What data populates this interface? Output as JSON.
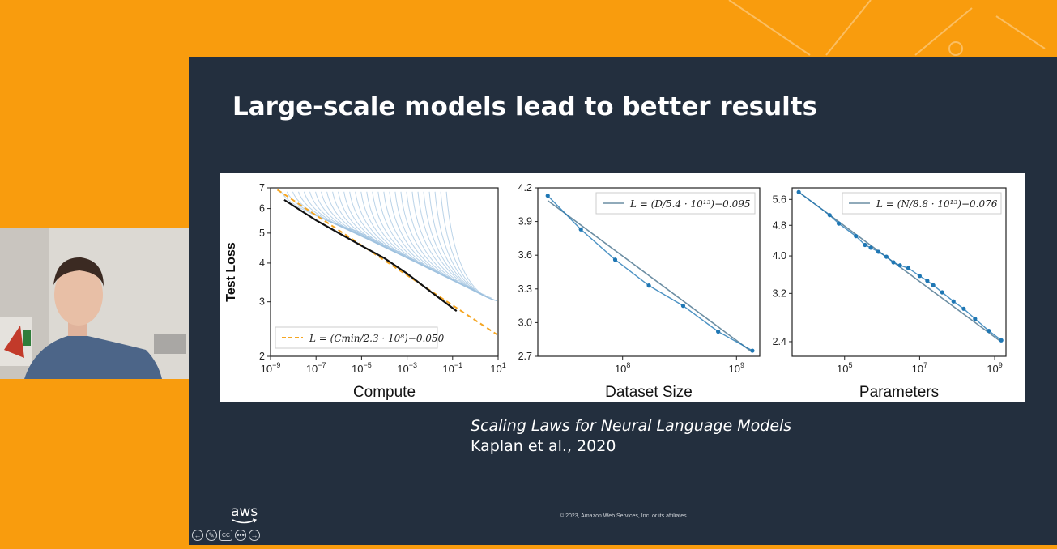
{
  "slide": {
    "title": "Large-scale models lead to better results",
    "caption_title": "Scaling Laws for Neural Language Models",
    "caption_citation": "Kaplan et al., 2020",
    "copyright": "© 2023, Amazon Web Services, Inc. or its affiliates.",
    "logo_text": "aws"
  },
  "controls": {
    "prev": "←",
    "pen": "✎",
    "cc": "CC",
    "more": "•••",
    "next": "→"
  },
  "colors": {
    "background": "#f99c0d",
    "slide_bg": "#232f3e",
    "fit_line": "#5b7f96",
    "points": "#1f77b4",
    "orange_dash": "#f5a623"
  },
  "chart_data": [
    {
      "type": "line",
      "xlabel": "Compute",
      "ylabel": "Test Loss",
      "xscale": "log",
      "yscale": "log",
      "xlim": [
        1e-09,
        10
      ],
      "ylim": [
        2,
        7
      ],
      "x_ticks": [
        "10−9",
        "10−7",
        "10−5",
        "10−3",
        "10−1",
        "101"
      ],
      "y_ticks": [
        "2",
        "3",
        "4",
        "5",
        "6",
        "7"
      ],
      "legend": "L = (Cmin/2.3 · 10⁸)−0.050",
      "legend_position": "lower-left",
      "series": [
        {
          "x": [
            4e-09,
            1e-06,
            0.0001,
            0.01,
            0.1,
            10
          ],
          "y": [
            6.7,
            5.4,
            4.4,
            3.6,
            3.1,
            2.4
          ]
        }
      ]
    },
    {
      "type": "line",
      "xlabel": "Dataset Size",
      "xscale": "log",
      "xlim": [
        18000000.0,
        1600000000.0
      ],
      "ylim": [
        2.7,
        4.2
      ],
      "x_ticks": [
        "108",
        "109"
      ],
      "y_ticks": [
        "2.7",
        "3.0",
        "3.3",
        "3.6",
        "3.9",
        "4.2"
      ],
      "legend": "L = (D/5.4 · 10¹³)−0.095",
      "legend_position": "top-right",
      "series": [
        {
          "x": [
            22000000.0,
            43000000.0,
            86000000.0,
            170000000.0,
            340000000.0,
            690000000.0,
            1380000000.0
          ],
          "y": [
            4.13,
            3.83,
            3.56,
            3.33,
            3.15,
            2.92,
            2.75
          ]
        }
      ]
    },
    {
      "type": "scatter",
      "xlabel": "Parameters",
      "xscale": "log",
      "yscale": "log",
      "xlim": [
        4000.0,
        2000000000.0
      ],
      "ylim": [
        2.2,
        6.0
      ],
      "x_ticks": [
        "105",
        "107",
        "109"
      ],
      "y_ticks": [
        "2.4",
        "3.2",
        "4.0",
        "4.8",
        "5.6"
      ],
      "legend": "L = (N/8.8 · 10¹³)−0.076",
      "legend_position": "top-right",
      "series": [
        {
          "x": [
            6000.0,
            40000.0,
            70000.0,
            200000.0,
            350000.0,
            500000.0,
            800000.0,
            1300000.0,
            2000000.0,
            3000000.0,
            5000000.0,
            10000000.0,
            16000000.0,
            23000000.0,
            40000000.0,
            80000000.0,
            150000000.0,
            300000000.0,
            700000000.0,
            1500000000.0
          ],
          "y": [
            5.85,
            5.1,
            4.85,
            4.5,
            4.27,
            4.2,
            4.1,
            3.98,
            3.85,
            3.78,
            3.72,
            3.55,
            3.45,
            3.36,
            3.22,
            3.05,
            2.92,
            2.75,
            2.56,
            2.42
          ]
        }
      ]
    }
  ]
}
